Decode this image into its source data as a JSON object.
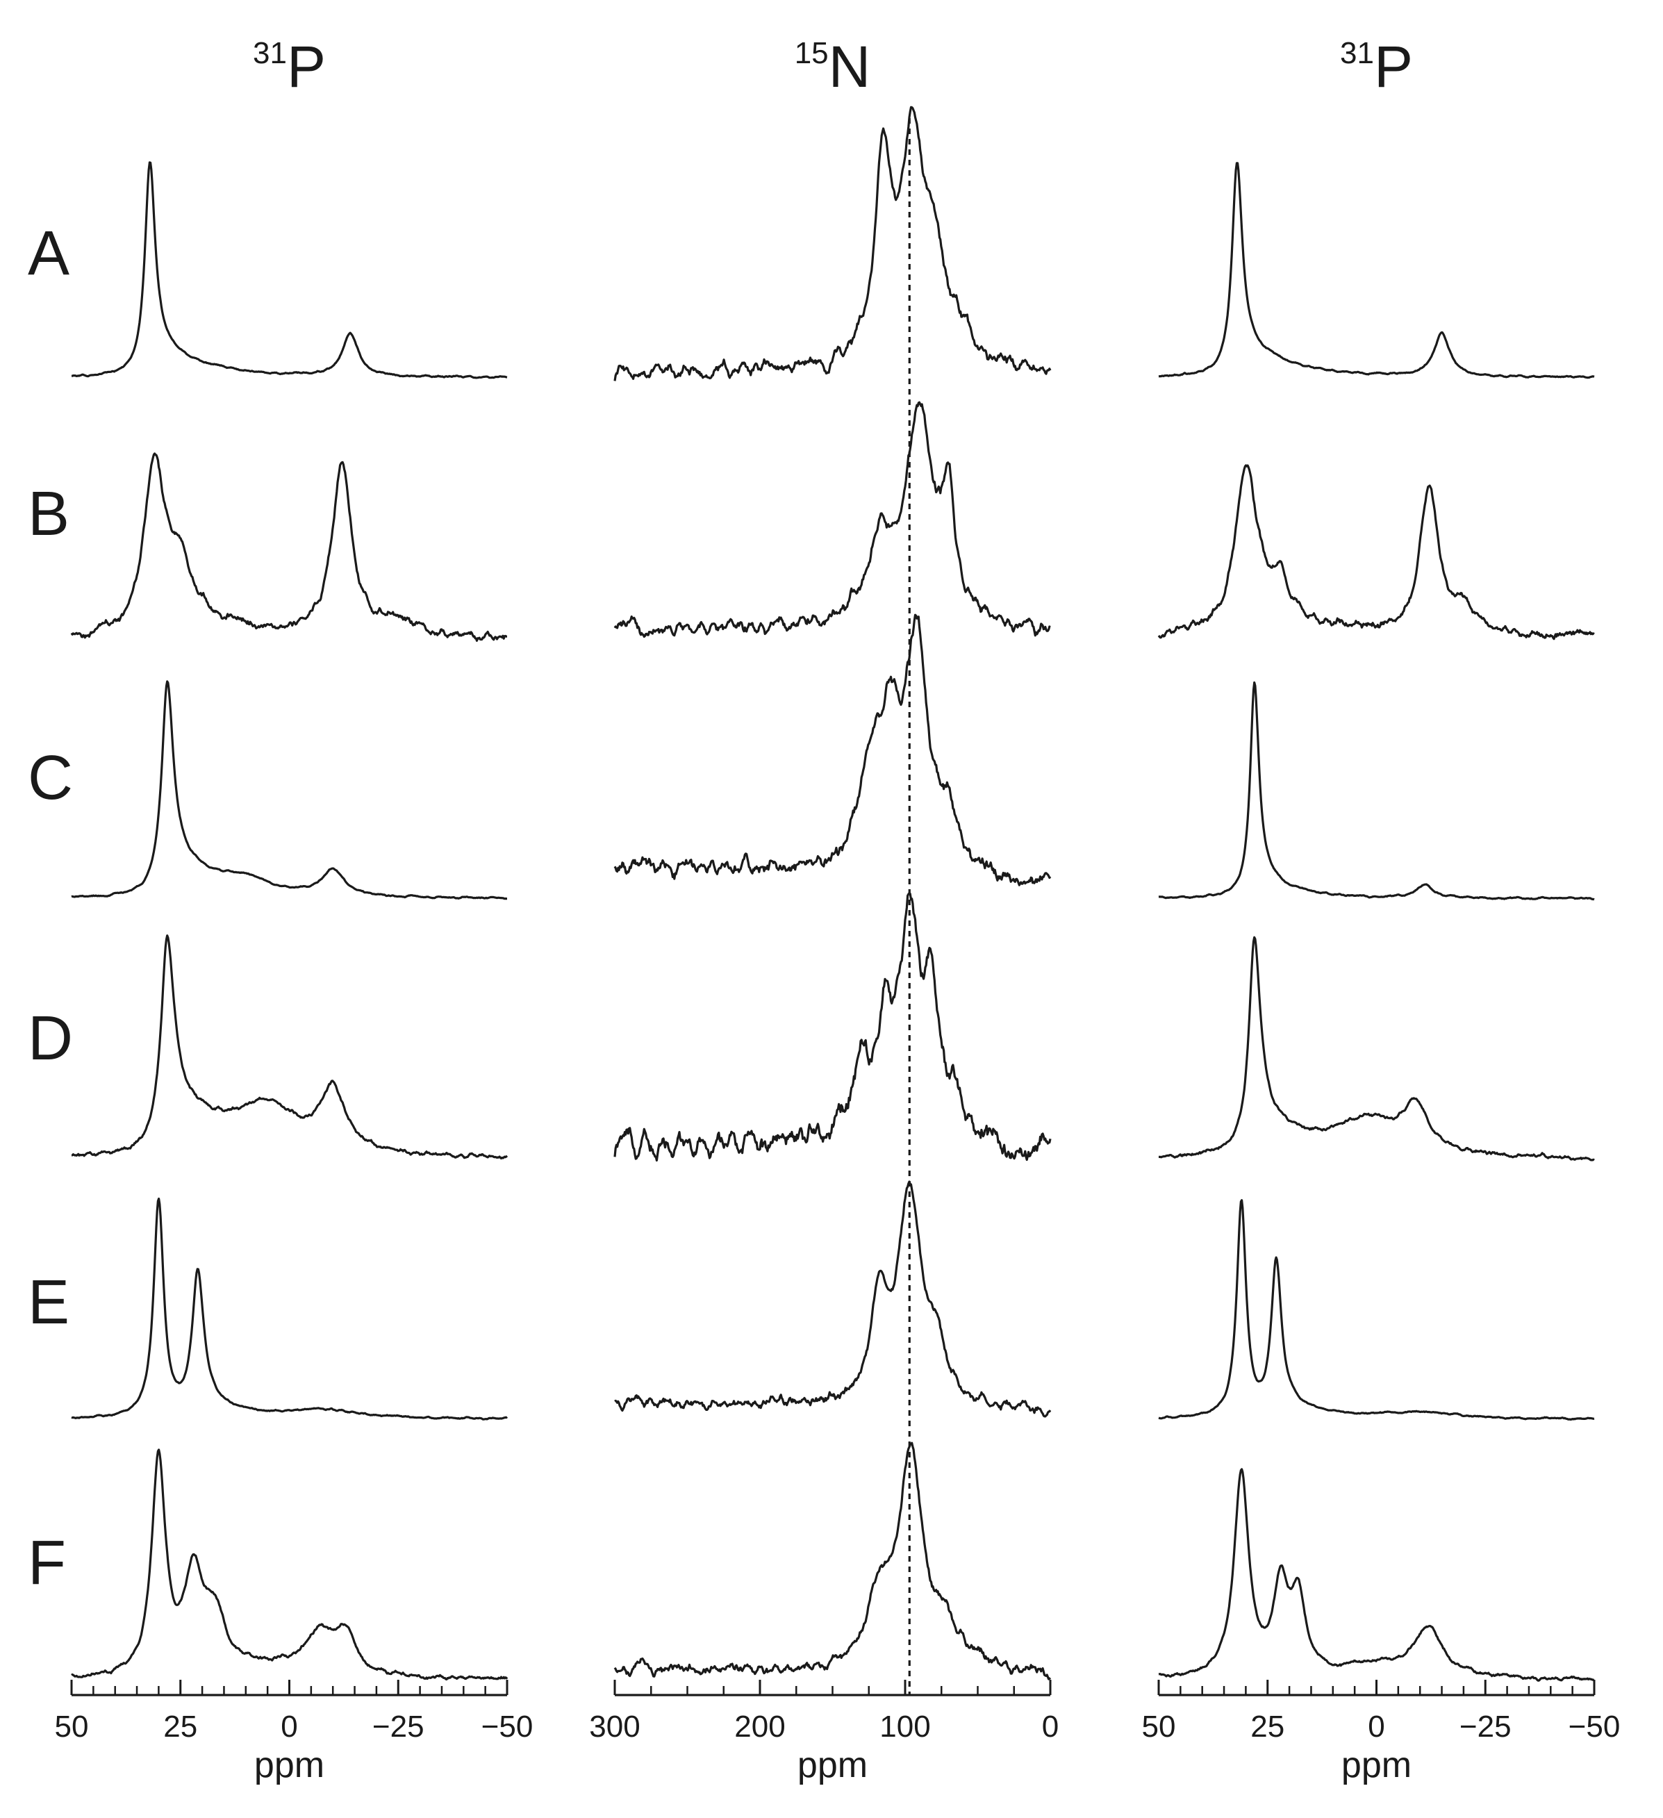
{
  "chart_data": [
    {
      "type": "line",
      "panel": "left",
      "nucleus": {
        "mass": "31",
        "symbol": "P"
      },
      "xlabel": "ppm",
      "xlim": [
        50,
        -50
      ],
      "xticks": [
        "50",
        "25",
        "0",
        "−25",
        "−50"
      ],
      "xtick_values": [
        50,
        25,
        0,
        -25,
        -50
      ],
      "minor_step": 5,
      "series": [
        {
          "name": "A",
          "peaks": [
            {
              "x": 32,
              "h": 1.0,
              "w": 1.4,
              "tail": 0.17,
              "tailw": 12
            },
            {
              "x": -14,
              "h": 0.2,
              "w": 2.2
            }
          ],
          "noise": 0.005,
          "baseline": 0.0
        },
        {
          "name": "B",
          "peaks": [
            {
              "x": 31,
              "h": 0.8,
              "w": 2.8,
              "tail": 0.14,
              "tailw": 15
            },
            {
              "x": 25,
              "h": 0.25,
              "w": 3.0
            },
            {
              "x": -12,
              "h": 0.8,
              "w": 2.6,
              "tail": 0.06,
              "tailw": 6
            },
            {
              "x": -25,
              "h": 0.07,
              "w": 4.0
            }
          ],
          "noise": 0.025,
          "baseline": 0.0
        },
        {
          "name": "C",
          "peaks": [
            {
              "x": 28,
              "h": 1.0,
              "w": 1.6,
              "tail": 0.22,
              "tailw": 13
            },
            {
              "x": 10,
              "h": 0.05,
              "w": 6.0
            },
            {
              "x": -10,
              "h": 0.12,
              "w": 3.0
            }
          ],
          "noise": 0.005,
          "baseline": 0.0
        },
        {
          "name": "D",
          "peaks": [
            {
              "x": 28,
              "h": 1.0,
              "w": 1.8,
              "tail": 0.3,
              "tailw": 14
            },
            {
              "x": 5,
              "h": 0.2,
              "w": 9.0
            },
            {
              "x": -10,
              "h": 0.28,
              "w": 3.4
            }
          ],
          "noise": 0.012,
          "baseline": 0.0
        },
        {
          "name": "E",
          "peaks": [
            {
              "x": 30,
              "h": 1.0,
              "w": 1.4
            },
            {
              "x": 21,
              "h": 0.67,
              "w": 1.6,
              "tail": 0.08,
              "tailw": 10
            },
            {
              "x": -8,
              "h": 0.04,
              "w": 10.0
            }
          ],
          "noise": 0.005,
          "baseline": 0.0
        },
        {
          "name": "F",
          "peaks": [
            {
              "x": 30,
              "h": 1.0,
              "w": 1.9
            },
            {
              "x": 22,
              "h": 0.45,
              "w": 2.6
            },
            {
              "x": 17,
              "h": 0.25,
              "w": 3.0
            },
            {
              "x": 4,
              "h": 0.05,
              "w": 10.0
            },
            {
              "x": -7,
              "h": 0.19,
              "w": 4.0
            },
            {
              "x": -13,
              "h": 0.18,
              "w": 2.6
            }
          ],
          "noise": 0.012,
          "baseline": 0.0
        }
      ]
    },
    {
      "type": "line",
      "panel": "center",
      "nucleus": {
        "mass": "15",
        "symbol": "N"
      },
      "xlabel": "ppm",
      "xlim": [
        300,
        0
      ],
      "xticks": [
        "300",
        "200",
        "100",
        "0"
      ],
      "xtick_values": [
        300,
        200,
        100,
        0
      ],
      "minor_step": 25,
      "reference_line_ppm": 97,
      "series": [
        {
          "name": "A",
          "peaks": [
            {
              "x": 115,
              "h": 0.92,
              "w": 7.0
            },
            {
              "x": 95,
              "h": 0.98,
              "w": 9.0
            },
            {
              "x": 80,
              "h": 0.45,
              "w": 10.0
            },
            {
              "x": 60,
              "h": 0.12,
              "w": 8.0
            }
          ],
          "noise": 0.04,
          "baseline": 0.03
        },
        {
          "name": "B",
          "peaks": [
            {
              "x": 118,
              "h": 0.35,
              "w": 10.0
            },
            {
              "x": 90,
              "h": 0.98,
              "w": 12.0
            },
            {
              "x": 70,
              "h": 0.5,
              "w": 5.0
            }
          ],
          "noise": 0.04,
          "baseline": 0.05
        },
        {
          "name": "C",
          "peaks": [
            {
              "x": 125,
              "h": 0.4,
              "w": 8.0
            },
            {
              "x": 110,
              "h": 0.6,
              "w": 10.0
            },
            {
              "x": 92,
              "h": 1.0,
              "w": 9.0
            },
            {
              "x": 70,
              "h": 0.25,
              "w": 8.0
            }
          ],
          "noise": 0.05,
          "baseline": 0.15
        },
        {
          "name": "D",
          "peaks": [
            {
              "x": 130,
              "h": 0.35,
              "w": 8.0
            },
            {
              "x": 113,
              "h": 0.5,
              "w": 6.0
            },
            {
              "x": 97,
              "h": 1.0,
              "w": 8.0
            },
            {
              "x": 82,
              "h": 0.62,
              "w": 7.0
            },
            {
              "x": 65,
              "h": 0.22,
              "w": 5.0
            }
          ],
          "noise": 0.07,
          "baseline": 0.08
        },
        {
          "name": "E",
          "peaks": [
            {
              "x": 118,
              "h": 0.45,
              "w": 6.0
            },
            {
              "x": 97,
              "h": 1.0,
              "w": 10.0
            },
            {
              "x": 78,
              "h": 0.22,
              "w": 7.0
            }
          ],
          "noise": 0.03,
          "baseline": 0.08
        },
        {
          "name": "F",
          "peaks": [
            {
              "x": 118,
              "h": 0.32,
              "w": 9.0
            },
            {
              "x": 96,
              "h": 1.0,
              "w": 10.0
            },
            {
              "x": 72,
              "h": 0.18,
              "w": 8.0
            },
            {
              "x": 50,
              "h": 0.05,
              "w": 8.0
            }
          ],
          "noise": 0.03,
          "baseline": 0.05
        }
      ]
    },
    {
      "type": "line",
      "panel": "right",
      "nucleus": {
        "mass": "31",
        "symbol": "P"
      },
      "xlabel": "ppm",
      "xlim": [
        50,
        -50
      ],
      "xticks": [
        "50",
        "25",
        "0",
        "−25",
        "−50"
      ],
      "xtick_values": [
        50,
        25,
        0,
        -25,
        -50
      ],
      "minor_step": 5,
      "series": [
        {
          "name": "A",
          "peaks": [
            {
              "x": 32,
              "h": 1.0,
              "w": 1.4,
              "tail": 0.17,
              "tailw": 12
            },
            {
              "x": -15,
              "h": 0.2,
              "w": 2.2
            }
          ],
          "noise": 0.005,
          "baseline": 0.0
        },
        {
          "name": "B",
          "peaks": [
            {
              "x": 30,
              "h": 0.8,
              "w": 3.0,
              "tail": 0.14,
              "tailw": 15
            },
            {
              "x": 22,
              "h": 0.15,
              "w": 2.5
            },
            {
              "x": -12,
              "h": 0.68,
              "w": 2.5,
              "tail": 0.06,
              "tailw": 6
            },
            {
              "x": -20,
              "h": 0.12,
              "w": 3.0
            }
          ],
          "noise": 0.025,
          "baseline": 0.0
        },
        {
          "name": "C",
          "peaks": [
            {
              "x": 28,
              "h": 1.0,
              "w": 1.2,
              "tail": 0.13,
              "tailw": 8
            },
            {
              "x": -11,
              "h": 0.06,
              "w": 2.5
            }
          ],
          "noise": 0.005,
          "baseline": 0.0
        },
        {
          "name": "D",
          "peaks": [
            {
              "x": 28,
              "h": 1.0,
              "w": 1.6,
              "tail": 0.22,
              "tailw": 12
            },
            {
              "x": 2,
              "h": 0.16,
              "w": 9.0
            },
            {
              "x": -9,
              "h": 0.2,
              "w": 3.4
            }
          ],
          "noise": 0.012,
          "baseline": 0.0
        },
        {
          "name": "E",
          "peaks": [
            {
              "x": 31,
              "h": 1.0,
              "w": 1.3
            },
            {
              "x": 23,
              "h": 0.72,
              "w": 1.4,
              "tail": 0.08,
              "tailw": 10
            },
            {
              "x": -10,
              "h": 0.03,
              "w": 10.0
            }
          ],
          "noise": 0.005,
          "baseline": 0.0
        },
        {
          "name": "F",
          "peaks": [
            {
              "x": 31,
              "h": 0.95,
              "w": 2.0
            },
            {
              "x": 22,
              "h": 0.4,
              "w": 2.0
            },
            {
              "x": 18,
              "h": 0.35,
              "w": 2.0
            },
            {
              "x": 0,
              "h": 0.06,
              "w": 10.0
            },
            {
              "x": -12,
              "h": 0.22,
              "w": 4.0
            }
          ],
          "noise": 0.01,
          "baseline": 0.0
        }
      ]
    }
  ]
}
